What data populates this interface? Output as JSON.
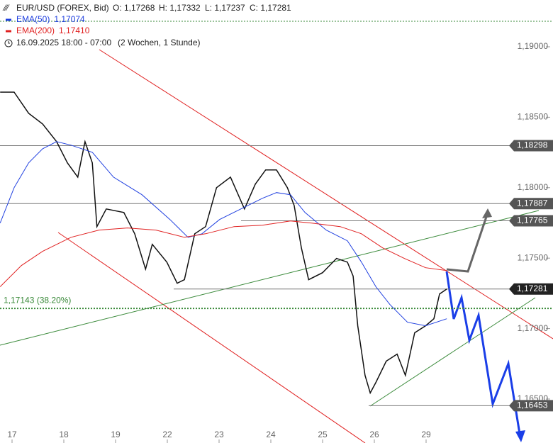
{
  "header": {
    "symbol": "EUR/USD (FOREX, Bid)",
    "open": "O: 1,17268",
    "high": "H: 1,17332",
    "low": "L: 1,17237",
    "close": "C: 1,17281",
    "range": "16.09.2025 18:00 - 07:00",
    "period": "(2 Wochen, 1 Stunde)"
  },
  "chart_data": {
    "type": "line",
    "title": "EUR/USD (FOREX, Bid)",
    "xlim": [
      -0.233,
      10.452
    ],
    "ylim": [
      1.16188,
      1.19332
    ],
    "xticks": [
      {
        "value": 0,
        "label": "17"
      },
      {
        "value": 1,
        "label": "18"
      },
      {
        "value": 2,
        "label": "19"
      },
      {
        "value": 3,
        "label": "22"
      },
      {
        "value": 4,
        "label": "23"
      },
      {
        "value": 5,
        "label": "24"
      },
      {
        "value": 6,
        "label": "25"
      },
      {
        "value": 7,
        "label": "26"
      },
      {
        "value": 8,
        "label": "29"
      }
    ],
    "yticks": [
      {
        "value": 1.165,
        "label": "1,16500"
      },
      {
        "value": 1.17,
        "label": "1,17000"
      },
      {
        "value": 1.175,
        "label": "1,17500"
      },
      {
        "value": 1.18,
        "label": "1,18000"
      },
      {
        "value": 1.185,
        "label": "1,18500"
      },
      {
        "value": 1.19,
        "label": "1,19000"
      }
    ],
    "series": [
      {
        "color": "#111111",
        "x": [
          -0.23,
          0.04,
          0.32,
          0.59,
          0.86,
          1.07,
          1.27,
          1.41,
          1.55,
          1.64,
          1.82,
          2.16,
          2.37,
          2.58,
          2.71,
          2.99,
          3.19,
          3.33,
          3.53,
          3.74,
          3.95,
          4.22,
          4.49,
          4.7,
          4.9,
          5.11,
          5.32,
          5.45,
          5.59,
          5.73,
          6.0,
          6.27,
          6.48,
          6.59,
          6.68,
          6.82,
          6.92,
          7.03,
          7.23,
          7.44,
          7.6,
          7.78,
          7.99,
          8.15,
          8.26,
          8.4
        ],
        "values": [
          1.18678,
          1.18678,
          1.18528,
          1.18452,
          1.18327,
          1.18176,
          1.18075,
          1.18327,
          1.18176,
          1.17724,
          1.17849,
          1.17824,
          1.17673,
          1.17422,
          1.17598,
          1.17472,
          1.17322,
          1.17347,
          1.17673,
          1.17724,
          1.18,
          1.18075,
          1.17849,
          1.18025,
          1.18126,
          1.18126,
          1.18,
          1.17874,
          1.17573,
          1.17347,
          1.17397,
          1.17498,
          1.17472,
          1.17372,
          1.1702,
          1.16668,
          1.16543,
          1.16618,
          1.16769,
          1.16819,
          1.16668,
          1.1697,
          1.1702,
          1.1707,
          1.17246,
          1.17281
        ]
      },
      {
        "name": "EMA(50)",
        "value_label": "1,17074",
        "color": "#2040e0",
        "x": [
          -0.23,
          0.04,
          0.32,
          0.59,
          0.86,
          1.14,
          1.55,
          1.96,
          2.51,
          3.05,
          3.4,
          3.67,
          4.01,
          4.42,
          4.84,
          5.11,
          5.38,
          5.66,
          6.07,
          6.48,
          6.75,
          7.03,
          7.3,
          7.64,
          7.99,
          8.4
        ],
        "values": [
          1.17749,
          1.18,
          1.18176,
          1.18276,
          1.18327,
          1.18302,
          1.18251,
          1.18075,
          1.1795,
          1.17774,
          1.17648,
          1.17673,
          1.17774,
          1.17849,
          1.17925,
          1.17965,
          1.1795,
          1.17824,
          1.17699,
          1.17623,
          1.17472,
          1.17297,
          1.17171,
          1.17045,
          1.1702,
          1.1707
        ]
      },
      {
        "name": "EMA(200)",
        "value_label": "1,17410",
        "color": "#e02020",
        "x": [
          -0.23,
          0.18,
          0.59,
          1.14,
          1.68,
          2.23,
          2.78,
          3.33,
          3.74,
          4.29,
          4.84,
          5.38,
          5.79,
          6.34,
          6.75,
          7.16,
          7.58,
          7.99,
          8.4
        ],
        "values": [
          1.17297,
          1.17447,
          1.17548,
          1.17648,
          1.17699,
          1.17714,
          1.17699,
          1.17648,
          1.17673,
          1.17724,
          1.17734,
          1.17764,
          1.17749,
          1.17724,
          1.17673,
          1.17573,
          1.17498,
          1.17432,
          1.17412
        ]
      }
    ],
    "levels": [
      {
        "value": 1.18298,
        "label": "1,18298"
      },
      {
        "value": 1.17887,
        "label": "1,17887"
      },
      {
        "value": 1.17765,
        "label": "1,17765"
      },
      {
        "value": 1.17281,
        "label": "1,17281"
      },
      {
        "value": 1.16453,
        "label": "1,16453"
      }
    ],
    "fib_level": {
      "value": 1.17143,
      "label": "1,17143 (38.20%)"
    }
  }
}
